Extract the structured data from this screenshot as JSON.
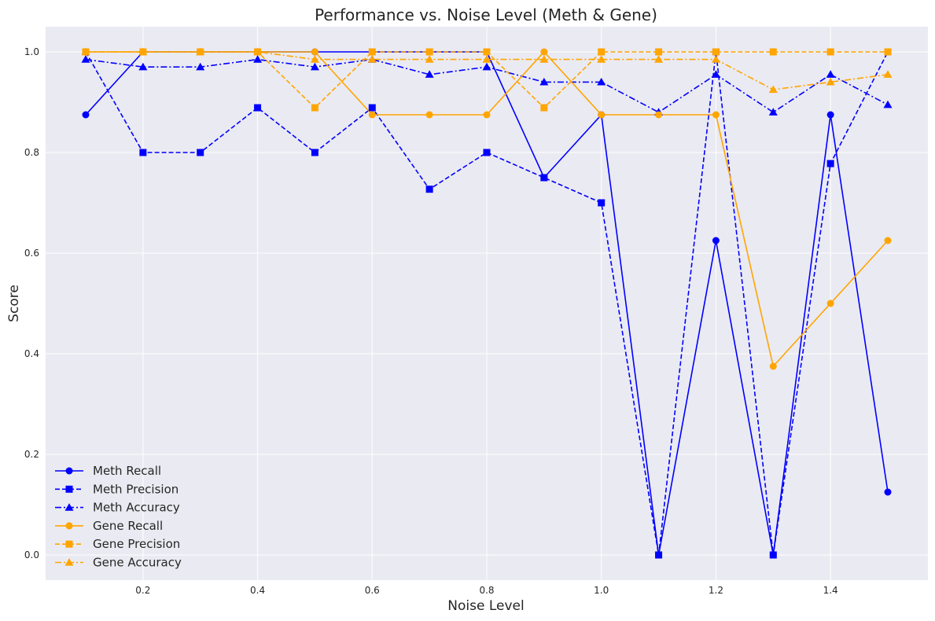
{
  "chart_data": {
    "type": "line",
    "title": "Performance vs. Noise Level (Meth & Gene)",
    "xlabel": "Noise Level",
    "ylabel": "Score",
    "xlim": [
      0.03,
      1.57
    ],
    "ylim": [
      -0.05,
      1.05
    ],
    "x_ticks": [
      0.2,
      0.4,
      0.6,
      0.8,
      1.0,
      1.2,
      1.4
    ],
    "x_tick_labels": [
      "0.2",
      "0.4",
      "0.6",
      "0.8",
      "1.0",
      "1.2",
      "1.4"
    ],
    "y_ticks": [
      0.0,
      0.2,
      0.4,
      0.6,
      0.8,
      1.0
    ],
    "y_tick_labels": [
      "0.0",
      "0.2",
      "0.4",
      "0.6",
      "0.8",
      "1.0"
    ],
    "grid": true,
    "legend_position": "lower-left",
    "x": [
      0.1,
      0.2,
      0.3,
      0.4,
      0.5,
      0.6,
      0.7,
      0.8,
      0.9,
      1.0,
      1.1,
      1.2,
      1.3,
      1.4,
      1.5
    ],
    "series": [
      {
        "name": "Meth Recall",
        "color": "#0000ff",
        "dash": "solid",
        "marker": "circle",
        "values": [
          0.875,
          1.0,
          1.0,
          1.0,
          1.0,
          1.0,
          1.0,
          1.0,
          0.75,
          0.875,
          0.0,
          0.625,
          0.0,
          0.875,
          0.125
        ]
      },
      {
        "name": "Meth Precision",
        "color": "#0000ff",
        "dash": "dashed",
        "marker": "square",
        "values": [
          1.0,
          0.8,
          0.8,
          0.889,
          0.8,
          0.889,
          0.727,
          0.8,
          0.75,
          0.7,
          0.0,
          1.0,
          0.0,
          0.778,
          1.0
        ]
      },
      {
        "name": "Meth Accuracy",
        "color": "#0000ff",
        "dash": "dashdot",
        "marker": "triangle",
        "values": [
          0.985,
          0.97,
          0.97,
          0.985,
          0.97,
          0.985,
          0.955,
          0.97,
          0.94,
          0.94,
          0.88,
          0.955,
          0.88,
          0.955,
          0.895
        ]
      },
      {
        "name": "Gene Recall",
        "color": "#ffa500",
        "dash": "solid",
        "marker": "circle",
        "values": [
          1.0,
          1.0,
          1.0,
          1.0,
          1.0,
          0.875,
          0.875,
          0.875,
          1.0,
          0.875,
          0.875,
          0.875,
          0.375,
          0.5,
          0.625
        ]
      },
      {
        "name": "Gene Precision",
        "color": "#ffa500",
        "dash": "dashed",
        "marker": "square",
        "values": [
          1.0,
          1.0,
          1.0,
          1.0,
          0.889,
          1.0,
          1.0,
          1.0,
          0.889,
          1.0,
          1.0,
          1.0,
          1.0,
          1.0,
          1.0
        ]
      },
      {
        "name": "Gene Accuracy",
        "color": "#ffa500",
        "dash": "dashdot",
        "marker": "triangle",
        "values": [
          1.0,
          1.0,
          1.0,
          1.0,
          0.985,
          0.985,
          0.985,
          0.985,
          0.985,
          0.985,
          0.985,
          0.985,
          0.925,
          0.94,
          0.955
        ]
      }
    ]
  },
  "colors": {
    "plot_background": "#eaeaf2",
    "grid": "#ffffff",
    "meth": "#0000ff",
    "gene": "#ffa500"
  }
}
